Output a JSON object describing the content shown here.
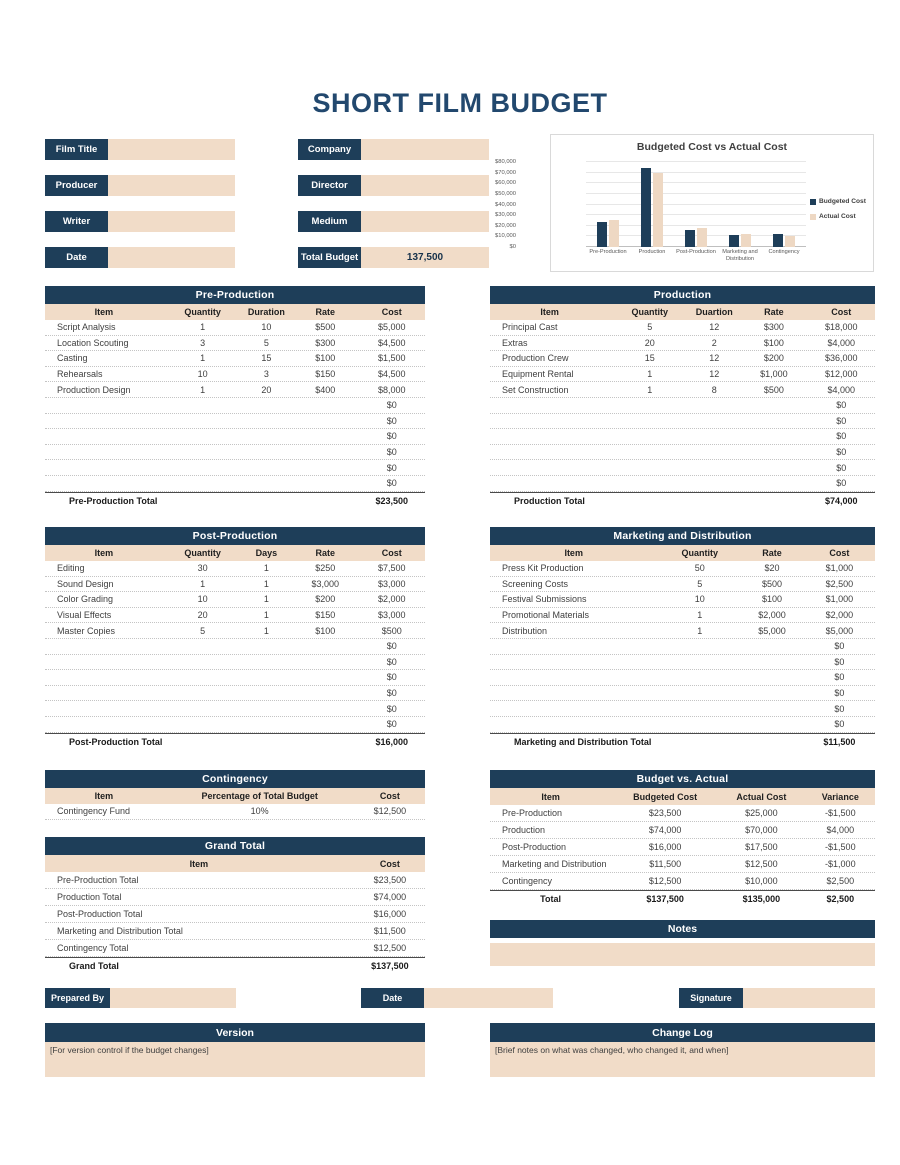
{
  "colors": {
    "navy": "#1e3e59",
    "tan": "#f1dcc8",
    "title_navy": "#22486e",
    "text": "#3f3f3f"
  },
  "page_title": "SHORT FILM BUDGET",
  "form": {
    "left": [
      {
        "label": "Film Title",
        "value": ""
      },
      {
        "label": "Producer",
        "value": ""
      },
      {
        "label": "Writer",
        "value": ""
      },
      {
        "label": "Date",
        "value": ""
      }
    ],
    "right": [
      {
        "label": "Company",
        "value": ""
      },
      {
        "label": "Director",
        "value": ""
      },
      {
        "label": "Medium",
        "value": ""
      },
      {
        "label": "Total Budget",
        "value": "137,500"
      }
    ]
  },
  "chart_data": {
    "type": "bar",
    "title": "Budgeted Cost vs Actual Cost",
    "categories": [
      "Pre-Production",
      "Production",
      "Post-Production",
      "Marketing and Distribution",
      "Contingency"
    ],
    "series": [
      {
        "name": "Budgeted Cost",
        "color": "#1e3e59",
        "values": [
          23500,
          74000,
          16000,
          11500,
          12500
        ]
      },
      {
        "name": "Actual Cost",
        "color": "#eed8c3",
        "values": [
          25000,
          70000,
          17500,
          12500,
          10000
        ]
      }
    ],
    "ylim": [
      0,
      80000
    ],
    "ytick_labels": [
      "$0",
      "$10,000",
      "$20,000",
      "$30,000",
      "$40,000",
      "$50,000",
      "$60,000",
      "$70,000",
      "$80,000"
    ],
    "legend_position": "right",
    "grid": true
  },
  "tables": {
    "pre_production": {
      "title": "Pre-Production",
      "columns": [
        "Item",
        "Quantity",
        "Duration",
        "Rate",
        "Cost"
      ],
      "rows": [
        [
          "Script Analysis",
          "1",
          "10",
          "$500",
          "$5,000"
        ],
        [
          "Location Scouting",
          "3",
          "5",
          "$300",
          "$4,500"
        ],
        [
          "Casting",
          "1",
          "15",
          "$100",
          "$1,500"
        ],
        [
          "Rehearsals",
          "10",
          "3",
          "$150",
          "$4,500"
        ],
        [
          "Production Design",
          "1",
          "20",
          "$400",
          "$8,000"
        ],
        [
          "",
          "",
          "",
          "",
          "$0"
        ],
        [
          "",
          "",
          "",
          "",
          "$0"
        ],
        [
          "",
          "",
          "",
          "",
          "$0"
        ],
        [
          "",
          "",
          "",
          "",
          "$0"
        ],
        [
          "",
          "",
          "",
          "",
          "$0"
        ],
        [
          "",
          "",
          "",
          "",
          "$0"
        ]
      ],
      "total": {
        "label": "Pre-Production Total",
        "value": "$23,500"
      }
    },
    "production": {
      "title": "Production",
      "columns": [
        "Item",
        "Quantity",
        "Duartion",
        "Rate",
        "Cost"
      ],
      "rows": [
        [
          "Principal Cast",
          "5",
          "12",
          "$300",
          "$18,000"
        ],
        [
          "Extras",
          "20",
          "2",
          "$100",
          "$4,000"
        ],
        [
          "Production Crew",
          "15",
          "12",
          "$200",
          "$36,000"
        ],
        [
          "Equipment Rental",
          "1",
          "12",
          "$1,000",
          "$12,000"
        ],
        [
          "Set Construction",
          "1",
          "8",
          "$500",
          "$4,000"
        ],
        [
          "",
          "",
          "",
          "",
          "$0"
        ],
        [
          "",
          "",
          "",
          "",
          "$0"
        ],
        [
          "",
          "",
          "",
          "",
          "$0"
        ],
        [
          "",
          "",
          "",
          "",
          "$0"
        ],
        [
          "",
          "",
          "",
          "",
          "$0"
        ],
        [
          "",
          "",
          "",
          "",
          "$0"
        ]
      ],
      "total": {
        "label": "Production Total",
        "value": "$74,000"
      }
    },
    "post_production": {
      "title": "Post-Production",
      "columns": [
        "Item",
        "Quantity",
        "Days",
        "Rate",
        "Cost"
      ],
      "rows": [
        [
          "Editing",
          "30",
          "1",
          "$250",
          "$7,500"
        ],
        [
          "Sound Design",
          "1",
          "1",
          "$3,000",
          "$3,000"
        ],
        [
          "Color Grading",
          "10",
          "1",
          "$200",
          "$2,000"
        ],
        [
          "Visual Effects",
          "20",
          "1",
          "$150",
          "$3,000"
        ],
        [
          "Master Copies",
          "5",
          "1",
          "$100",
          "$500"
        ],
        [
          "",
          "",
          "",
          "",
          "$0"
        ],
        [
          "",
          "",
          "",
          "",
          "$0"
        ],
        [
          "",
          "",
          "",
          "",
          "$0"
        ],
        [
          "",
          "",
          "",
          "",
          "$0"
        ],
        [
          "",
          "",
          "",
          "",
          "$0"
        ],
        [
          "",
          "",
          "",
          "",
          "$0"
        ]
      ],
      "total": {
        "label": "Post-Production Total",
        "value": "$16,000"
      }
    },
    "marketing": {
      "title": "Marketing and Distribution",
      "columns": [
        "Item",
        "Quantity",
        "Rate",
        "Cost"
      ],
      "rows": [
        [
          "Press Kit Production",
          "50",
          "$20",
          "$1,000"
        ],
        [
          "Screening Costs",
          "5",
          "$500",
          "$2,500"
        ],
        [
          "Festival Submissions",
          "10",
          "$100",
          "$1,000"
        ],
        [
          "Promotional Materials",
          "1",
          "$2,000",
          "$2,000"
        ],
        [
          "Distribution",
          "1",
          "$5,000",
          "$5,000"
        ],
        [
          "",
          "",
          "",
          "$0"
        ],
        [
          "",
          "",
          "",
          "$0"
        ],
        [
          "",
          "",
          "",
          "$0"
        ],
        [
          "",
          "",
          "",
          "$0"
        ],
        [
          "",
          "",
          "",
          "$0"
        ],
        [
          "",
          "",
          "",
          "$0"
        ]
      ],
      "total": {
        "label": "Marketing and Distribution Total",
        "value": "$11,500"
      }
    },
    "contingency": {
      "title": "Contingency",
      "columns": [
        "Item",
        "Percentage of Total Budget",
        "Cost"
      ],
      "rows": [
        [
          "Contingency Fund",
          "10%",
          "$12,500"
        ]
      ]
    },
    "grand_total": {
      "title": "Grand Total",
      "columns": [
        "Item",
        "Cost"
      ],
      "rows": [
        [
          "Pre-Production Total",
          "$23,500"
        ],
        [
          "Production Total",
          "$74,000"
        ],
        [
          "Post-Production Total",
          "$16,000"
        ],
        [
          "Marketing and Distribution Total",
          "$11,500"
        ],
        [
          "Contingency Total",
          "$12,500"
        ]
      ],
      "total": {
        "label": "Grand Total",
        "value": "$137,500"
      }
    },
    "budget_vs_actual": {
      "title": "Budget vs. Actual",
      "columns": [
        "Item",
        "Budgeted Cost",
        "Actual Cost",
        "Variance"
      ],
      "rows": [
        [
          "Pre-Production",
          "$23,500",
          "$25,000",
          "-$1,500"
        ],
        [
          "Production",
          "$74,000",
          "$70,000",
          "$4,000"
        ],
        [
          "Post-Production",
          "$16,000",
          "$17,500",
          "-$1,500"
        ],
        [
          "Marketing and Distribution",
          "$11,500",
          "$12,500",
          "-$1,000"
        ],
        [
          "Contingency",
          "$12,500",
          "$10,000",
          "$2,500"
        ]
      ],
      "total": [
        "Total",
        "$137,500",
        "$135,000",
        "$2,500"
      ]
    }
  },
  "notes": {
    "title": "Notes"
  },
  "footer": {
    "prepared_by_label": "Prepared By",
    "date_label": "Date",
    "signature_label": "Signature",
    "version": {
      "title": "Version",
      "placeholder": "[For version control if the budget changes]"
    },
    "change_log": {
      "title": "Change Log",
      "placeholder": "[Brief notes on what was changed, who changed it, and when]"
    }
  }
}
